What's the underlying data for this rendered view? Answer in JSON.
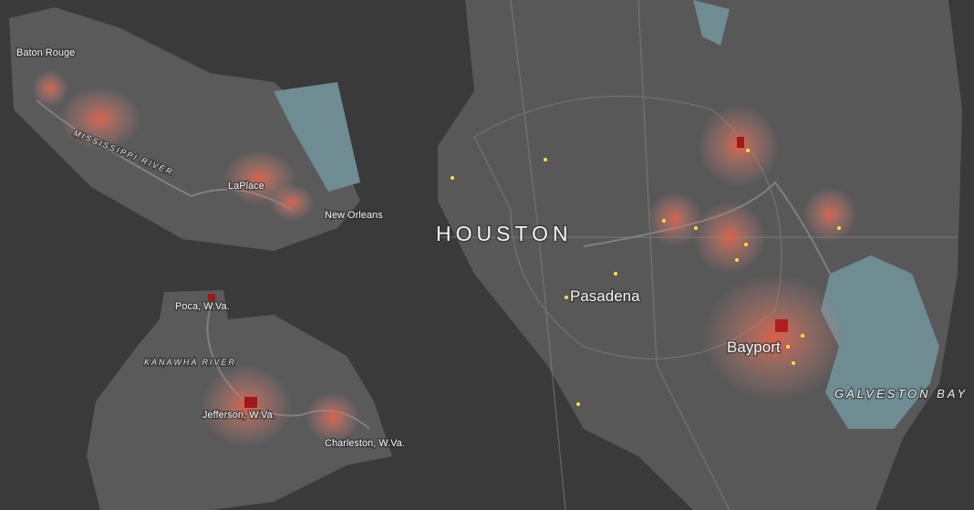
{
  "louisiana": {
    "labels": [
      "Baton Rouge",
      "MISSISSIPPI RIVER",
      "LaPlace",
      "New Orleans"
    ]
  },
  "west_virginia": {
    "labels": [
      "Poca, W.Va.",
      "KANAWHA RIVER",
      "Jefferson, W.Va.",
      "Charleston, W.Va."
    ]
  },
  "houston": {
    "labels": [
      "HOUSTON",
      "Pasadena",
      "Bayport",
      "GALVESTON BAY"
    ]
  }
}
